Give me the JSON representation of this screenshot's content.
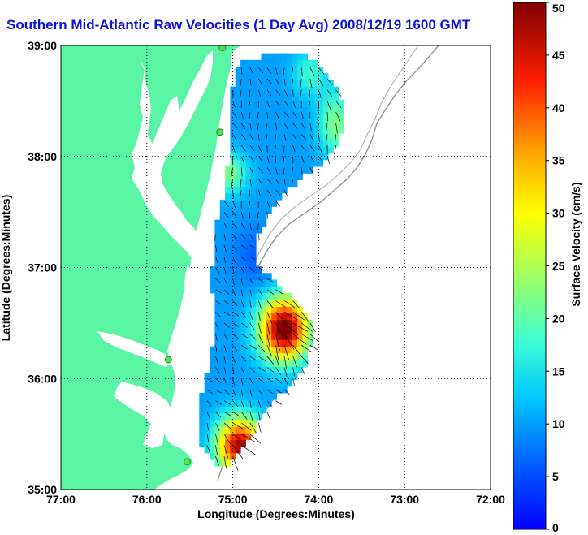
{
  "title": "Southern Mid-Atlantic Raw Velocities (1 Day Avg) 2008/12/19 1600 GMT",
  "axes": {
    "xlabel": "Longitude (Degrees:Minutes)",
    "ylabel": "Latitude (Degrees:Minutes)",
    "x_ticks": [
      "77:00",
      "76:00",
      "75:00",
      "74:00",
      "73:00",
      "72:00"
    ],
    "y_ticks": [
      "39:00",
      "38:00",
      "37:00",
      "36:00",
      "35:00"
    ],
    "x_range_deg": [
      -77,
      -72
    ],
    "y_range_deg": [
      35,
      39
    ],
    "grid": "dotted"
  },
  "colorbar": {
    "label": "Surface Velocity (cm/s)",
    "ticks": [
      "50",
      "45",
      "40",
      "35",
      "30",
      "25",
      "20",
      "15",
      "10",
      "5",
      "0"
    ],
    "range": [
      0,
      50
    ],
    "colormap": "jet"
  },
  "colors": {
    "land": "#5af5a4",
    "water": "#ffffff",
    "title": "#1010e0",
    "station": "#55e050"
  },
  "stations": [
    {
      "lon": -75.12,
      "lat": 38.98
    },
    {
      "lon": -75.15,
      "lat": 38.22
    },
    {
      "lon": -75.75,
      "lat": 36.17
    },
    {
      "lon": -75.53,
      "lat": 35.25
    }
  ]
}
